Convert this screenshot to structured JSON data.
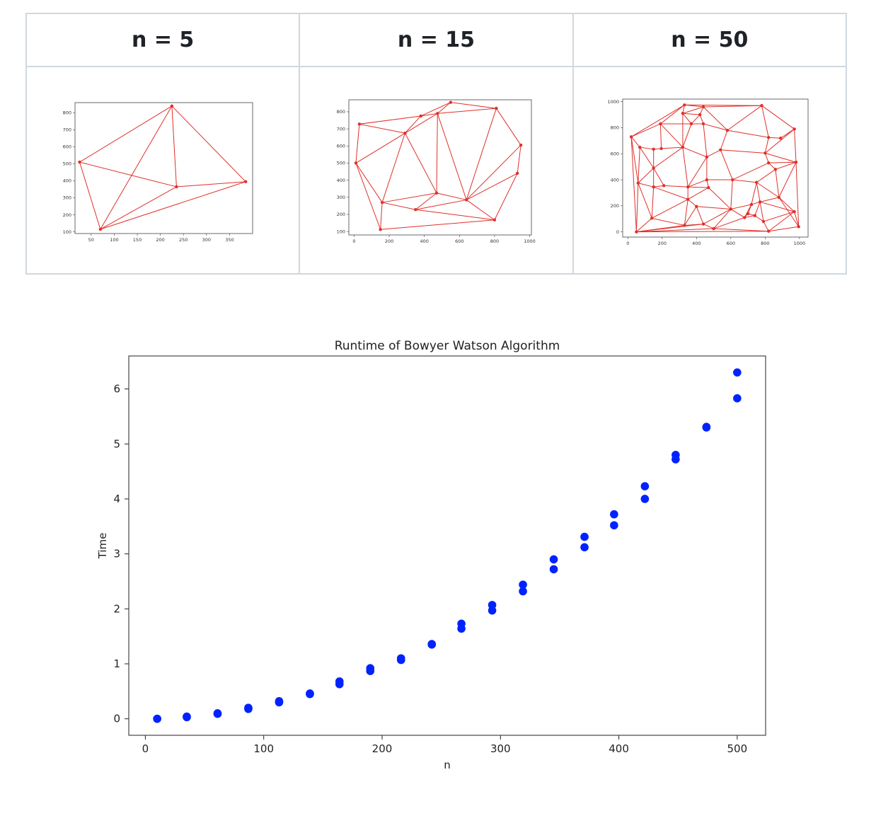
{
  "table": {
    "headers": [
      "n = 5",
      "n = 15",
      "n = 50"
    ]
  },
  "colors": {
    "mesh": "#e0302a",
    "scatter": "#0022ff",
    "axis": "#333333"
  },
  "chart_data": [
    {
      "type": "line",
      "title": "",
      "xlabel": "",
      "ylabel": "",
      "xlim": [
        15,
        400
      ],
      "ylim": [
        90,
        860
      ],
      "xticks": [
        50,
        100,
        150,
        200,
        250,
        300,
        350
      ],
      "yticks": [
        100,
        200,
        300,
        400,
        500,
        600,
        700,
        800
      ],
      "points": [
        [
          225,
          840
        ],
        [
          25,
          510
        ],
        [
          70,
          115
        ],
        [
          235,
          365
        ],
        [
          385,
          395
        ]
      ],
      "edges": [
        [
          0,
          1
        ],
        [
          0,
          2
        ],
        [
          0,
          3
        ],
        [
          0,
          4
        ],
        [
          1,
          2
        ],
        [
          1,
          3
        ],
        [
          2,
          3
        ],
        [
          3,
          4
        ],
        [
          2,
          4
        ]
      ]
    },
    {
      "type": "line",
      "title": "",
      "xlabel": "",
      "ylabel": "",
      "xlim": [
        -30,
        1010
      ],
      "ylim": [
        80,
        870
      ],
      "xticks": [
        0,
        200,
        400,
        600,
        800,
        1000
      ],
      "yticks": [
        100,
        200,
        300,
        400,
        500,
        600,
        700,
        800
      ],
      "points": [
        [
          550,
          855
        ],
        [
          810,
          820
        ],
        [
          380,
          775
        ],
        [
          475,
          790
        ],
        [
          30,
          728
        ],
        [
          290,
          675
        ],
        [
          950,
          605
        ],
        [
          10,
          500
        ],
        [
          930,
          440
        ],
        [
          470,
          325
        ],
        [
          160,
          270
        ],
        [
          640,
          285
        ],
        [
          350,
          228
        ],
        [
          800,
          168
        ],
        [
          150,
          112
        ]
      ],
      "edges": [
        [
          0,
          1
        ],
        [
          0,
          3
        ],
        [
          0,
          2
        ],
        [
          2,
          3
        ],
        [
          4,
          2
        ],
        [
          4,
          5
        ],
        [
          4,
          7
        ],
        [
          2,
          5
        ],
        [
          3,
          5
        ],
        [
          5,
          7
        ],
        [
          5,
          10
        ],
        [
          5,
          9
        ],
        [
          3,
          9
        ],
        [
          3,
          11
        ],
        [
          3,
          1
        ],
        [
          1,
          11
        ],
        [
          1,
          6
        ],
        [
          6,
          11
        ],
        [
          6,
          8
        ],
        [
          8,
          11
        ],
        [
          8,
          13
        ],
        [
          11,
          13
        ],
        [
          11,
          9
        ],
        [
          9,
          10
        ],
        [
          10,
          12
        ],
        [
          12,
          9
        ],
        [
          12,
          11
        ],
        [
          12,
          13
        ],
        [
          13,
          14
        ],
        [
          10,
          14
        ],
        [
          7,
          10
        ],
        [
          7,
          14
        ]
      ]
    },
    {
      "type": "line",
      "title": "",
      "xlabel": "",
      "ylabel": "",
      "xlim": [
        -30,
        1050
      ],
      "ylim": [
        -40,
        1020
      ],
      "xticks": [
        0,
        200,
        400,
        600,
        800,
        1000
      ],
      "yticks": [
        0,
        200,
        400,
        600,
        800,
        1000
      ],
      "points": [
        [
          330,
          975
        ],
        [
          780,
          970
        ],
        [
          440,
          960
        ],
        [
          320,
          910
        ],
        [
          420,
          900
        ],
        [
          370,
          830
        ],
        [
          440,
          830
        ],
        [
          190,
          830
        ],
        [
          580,
          780
        ],
        [
          820,
          725
        ],
        [
          890,
          720
        ],
        [
          970,
          790
        ],
        [
          20,
          730
        ],
        [
          70,
          650
        ],
        [
          150,
          635
        ],
        [
          195,
          640
        ],
        [
          320,
          650
        ],
        [
          460,
          575
        ],
        [
          540,
          630
        ],
        [
          800,
          605
        ],
        [
          980,
          535
        ],
        [
          820,
          530
        ],
        [
          860,
          480
        ],
        [
          610,
          400
        ],
        [
          750,
          380
        ],
        [
          460,
          400
        ],
        [
          150,
          490
        ],
        [
          60,
          375
        ],
        [
          150,
          345
        ],
        [
          210,
          355
        ],
        [
          350,
          345
        ],
        [
          470,
          340
        ],
        [
          350,
          250
        ],
        [
          600,
          175
        ],
        [
          720,
          210
        ],
        [
          770,
          230
        ],
        [
          880,
          265
        ],
        [
          140,
          105
        ],
        [
          400,
          195
        ],
        [
          680,
          110
        ],
        [
          740,
          125
        ],
        [
          790,
          80
        ],
        [
          970,
          155
        ],
        [
          330,
          50
        ],
        [
          440,
          60
        ],
        [
          500,
          25
        ],
        [
          820,
          5
        ],
        [
          995,
          40
        ],
        [
          50,
          0
        ],
        [
          700,
          140
        ]
      ],
      "edges": [
        [
          0,
          1
        ],
        [
          0,
          2
        ],
        [
          0,
          3
        ],
        [
          0,
          7
        ],
        [
          0,
          12
        ],
        [
          2,
          1
        ],
        [
          3,
          2
        ],
        [
          3,
          4
        ],
        [
          4,
          2
        ],
        [
          4,
          5
        ],
        [
          5,
          3
        ],
        [
          5,
          6
        ],
        [
          6,
          4
        ],
        [
          6,
          8
        ],
        [
          8,
          2
        ],
        [
          8,
          1
        ],
        [
          1,
          9
        ],
        [
          9,
          10
        ],
        [
          10,
          11
        ],
        [
          11,
          1
        ],
        [
          9,
          8
        ],
        [
          7,
          12
        ],
        [
          7,
          5
        ],
        [
          7,
          15
        ],
        [
          12,
          13
        ],
        [
          13,
          14
        ],
        [
          14,
          15
        ],
        [
          15,
          16
        ],
        [
          16,
          7
        ],
        [
          16,
          5
        ],
        [
          16,
          17
        ],
        [
          17,
          6
        ],
        [
          17,
          18
        ],
        [
          18,
          8
        ],
        [
          18,
          19
        ],
        [
          19,
          9
        ],
        [
          19,
          11
        ],
        [
          19,
          20
        ],
        [
          20,
          11
        ],
        [
          20,
          21
        ],
        [
          21,
          22
        ],
        [
          22,
          20
        ],
        [
          21,
          19
        ],
        [
          17,
          25
        ],
        [
          25,
          23
        ],
        [
          23,
          18
        ],
        [
          23,
          21
        ],
        [
          23,
          24
        ],
        [
          24,
          22
        ],
        [
          22,
          36
        ],
        [
          24,
          36
        ],
        [
          36,
          20
        ],
        [
          36,
          47
        ],
        [
          47,
          20
        ],
        [
          13,
          26
        ],
        [
          14,
          26
        ],
        [
          26,
          16
        ],
        [
          26,
          27
        ],
        [
          27,
          12
        ],
        [
          27,
          13
        ],
        [
          26,
          28
        ],
        [
          28,
          27
        ],
        [
          28,
          29
        ],
        [
          29,
          26
        ],
        [
          29,
          30
        ],
        [
          30,
          16
        ],
        [
          30,
          17
        ],
        [
          30,
          31
        ],
        [
          31,
          25
        ],
        [
          25,
          30
        ],
        [
          28,
          32
        ],
        [
          32,
          30
        ],
        [
          32,
          31
        ],
        [
          31,
          33
        ],
        [
          33,
          23
        ],
        [
          33,
          34
        ],
        [
          34,
          24
        ],
        [
          34,
          35
        ],
        [
          35,
          24
        ],
        [
          35,
          36
        ],
        [
          35,
          42
        ],
        [
          42,
          36
        ],
        [
          42,
          47
        ],
        [
          37,
          27
        ],
        [
          37,
          28
        ],
        [
          37,
          32
        ],
        [
          32,
          38
        ],
        [
          38,
          33
        ],
        [
          38,
          43
        ],
        [
          43,
          32
        ],
        [
          38,
          44
        ],
        [
          44,
          33
        ],
        [
          44,
          45
        ],
        [
          45,
          33
        ],
        [
          33,
          39
        ],
        [
          39,
          34
        ],
        [
          39,
          40
        ],
        [
          40,
          35
        ],
        [
          40,
          41
        ],
        [
          41,
          42
        ],
        [
          41,
          46
        ],
        [
          46,
          42
        ],
        [
          46,
          47
        ],
        [
          45,
          46
        ],
        [
          45,
          39
        ],
        [
          39,
          49
        ],
        [
          49,
          34
        ],
        [
          49,
          40
        ],
        [
          37,
          48
        ],
        [
          48,
          12
        ],
        [
          48,
          27
        ],
        [
          37,
          43
        ],
        [
          43,
          48
        ],
        [
          43,
          44
        ],
        [
          44,
          48
        ],
        [
          45,
          48
        ],
        [
          46,
          48
        ],
        [
          16,
          3
        ],
        [
          41,
          35
        ]
      ]
    },
    {
      "type": "scatter",
      "title": "Runtime of Bowyer Watson Algorithm",
      "xlabel": "n",
      "ylabel": "Time",
      "xlim": [
        -14,
        524
      ],
      "ylim": [
        -0.3,
        6.6
      ],
      "xticks": [
        0,
        100,
        200,
        300,
        400,
        500
      ],
      "yticks": [
        0,
        1,
        2,
        3,
        4,
        5,
        6
      ],
      "grid": false,
      "series": [
        {
          "values": [
            [
              10,
              0.0
            ],
            [
              10,
              0.0
            ],
            [
              35,
              0.03
            ],
            [
              35,
              0.04
            ],
            [
              61,
              0.09
            ],
            [
              61,
              0.1
            ],
            [
              87,
              0.18
            ],
            [
              87,
              0.2
            ],
            [
              113,
              0.3
            ],
            [
              113,
              0.32
            ],
            [
              139,
              0.45
            ],
            [
              139,
              0.46
            ],
            [
              164,
              0.63
            ],
            [
              164,
              0.68
            ],
            [
              190,
              0.87
            ],
            [
              190,
              0.92
            ],
            [
              216,
              1.07
            ],
            [
              216,
              1.1
            ],
            [
              242,
              1.35
            ],
            [
              242,
              1.36
            ],
            [
              267,
              1.64
            ],
            [
              267,
              1.73
            ],
            [
              293,
              1.97
            ],
            [
              293,
              2.07
            ],
            [
              319,
              2.32
            ],
            [
              319,
              2.44
            ],
            [
              345,
              2.72
            ],
            [
              345,
              2.9
            ],
            [
              371,
              3.12
            ],
            [
              371,
              3.31
            ],
            [
              396,
              3.52
            ],
            [
              396,
              3.72
            ],
            [
              422,
              4.0
            ],
            [
              422,
              4.23
            ],
            [
              448,
              4.72
            ],
            [
              448,
              4.8
            ],
            [
              474,
              5.3
            ],
            [
              474,
              5.31
            ],
            [
              500,
              5.83
            ],
            [
              500,
              6.3
            ]
          ]
        }
      ]
    }
  ]
}
